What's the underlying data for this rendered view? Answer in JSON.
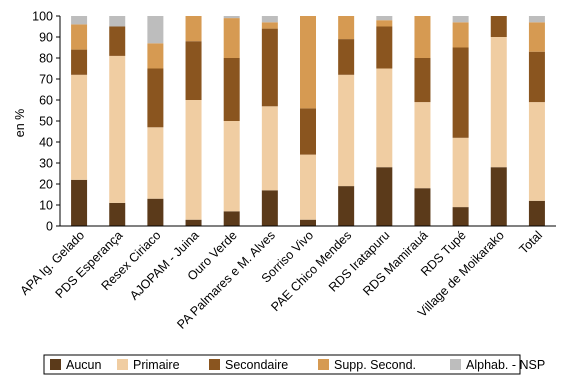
{
  "chart_data": {
    "type": "bar",
    "stacked": true,
    "ylabel": "en %",
    "ylim": [
      0,
      100
    ],
    "yticks": [
      "0",
      "10",
      "20",
      "30",
      "40",
      "50",
      "60",
      "70",
      "80",
      "90",
      "100"
    ],
    "grid": false,
    "legend_position": "bottom",
    "categories": [
      "APA Ig. Gelado",
      "PDS Esperança",
      "Resex Ciriaco",
      "AJOPAM - Juina",
      "Ouro Verde",
      "PA Palmares e M. Alves",
      "Sorriso Vivo",
      "PAE Chico Mendes",
      "RDS Iratapuru",
      "RDS Mamirauá",
      "RDS Tupé",
      "Village de Moikarako",
      "Total"
    ],
    "series": [
      {
        "name": "Aucun",
        "color": "#5b3a1a",
        "values": [
          22,
          11,
          13,
          3,
          7,
          17,
          3,
          19,
          28,
          18,
          9,
          28,
          12
        ]
      },
      {
        "name": "Primaire",
        "color": "#f0cda2",
        "values": [
          50,
          70,
          34,
          57,
          43,
          40,
          31,
          53,
          47,
          41,
          33,
          62,
          47
        ]
      },
      {
        "name": "Secondaire",
        "color": "#8a551f",
        "values": [
          12,
          14,
          28,
          28,
          30,
          37,
          22,
          17,
          20,
          21,
          43,
          10,
          24
        ]
      },
      {
        "name": "Supp. Second.",
        "color": "#d69a52",
        "values": [
          12,
          0,
          12,
          12,
          19,
          3,
          44,
          11,
          3,
          20,
          12,
          0,
          14
        ]
      },
      {
        "name": "Alphab. - NSP",
        "color": "#bdbdbd",
        "values": [
          4,
          5,
          13,
          0,
          1,
          3,
          0,
          0,
          2,
          0,
          3,
          0,
          3
        ]
      }
    ]
  }
}
